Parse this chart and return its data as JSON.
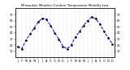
{
  "title": "Milwaukee Weather Outdoor Temperature Monthly Low",
  "x": [
    0,
    1,
    2,
    3,
    4,
    5,
    6,
    7,
    8,
    9,
    10,
    11,
    12,
    13,
    14,
    15,
    16,
    17,
    18,
    19,
    20,
    21,
    22,
    23
  ],
  "y": [
    18,
    14,
    28,
    38,
    48,
    58,
    64,
    62,
    52,
    40,
    30,
    18,
    14,
    20,
    33,
    42,
    52,
    60,
    66,
    63,
    54,
    42,
    32,
    22
  ],
  "line_color": "#0000cc",
  "marker_color": "#000000",
  "grid_color": "#aaaaaa",
  "bg_color": "#ffffff",
  "ylim_min": 0,
  "ylim_max": 80,
  "yticks": [
    10,
    20,
    30,
    40,
    50,
    60,
    70
  ],
  "line_style": "--",
  "line_width": 0.7,
  "marker_size": 1.8,
  "title_fontsize": 2.8,
  "tick_fontsize": 2.5,
  "grid_linewidth": 0.3,
  "spine_linewidth": 0.4
}
